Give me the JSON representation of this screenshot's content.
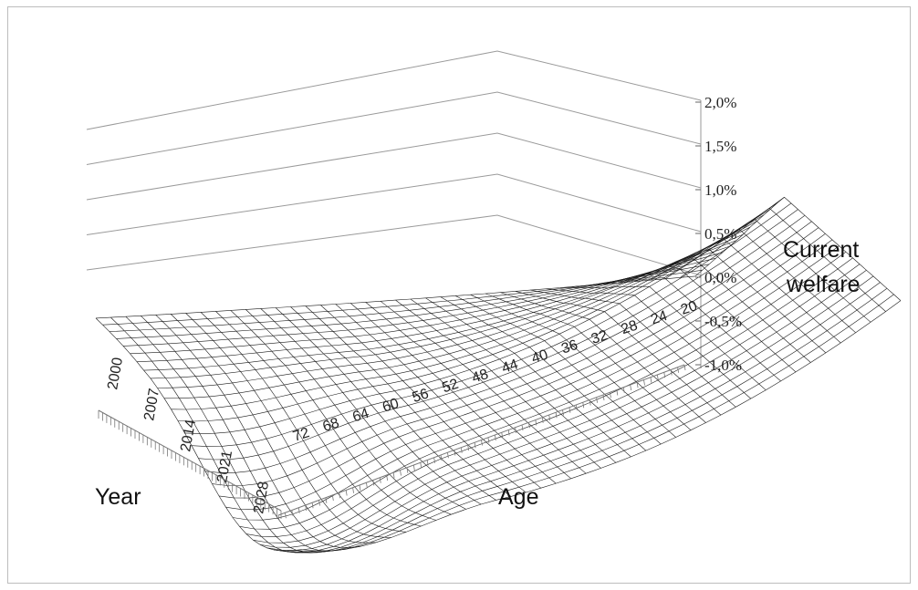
{
  "chart_data": {
    "type": "surface",
    "title": "",
    "z_label": [
      "Current",
      "welfare"
    ],
    "x_label": "Age",
    "y_label": "Year",
    "z_ticks": [
      "2,0%",
      "1,5%",
      "1,0%",
      "0,5%",
      "0,0%",
      "-0,5%",
      "-1,0%"
    ],
    "z_range": [
      -1.0,
      2.0
    ],
    "age_ticks": [
      "20",
      "24",
      "28",
      "32",
      "36",
      "40",
      "44",
      "48",
      "52",
      "56",
      "60",
      "64",
      "68",
      "72"
    ],
    "year_ticks": [
      "2000",
      "2007",
      "2014",
      "2021",
      "2028"
    ],
    "grid": true,
    "colors": {
      "mesh": "#1a1a1a",
      "grid": "#9a9a9a",
      "frame": "#bdbdbd"
    }
  }
}
